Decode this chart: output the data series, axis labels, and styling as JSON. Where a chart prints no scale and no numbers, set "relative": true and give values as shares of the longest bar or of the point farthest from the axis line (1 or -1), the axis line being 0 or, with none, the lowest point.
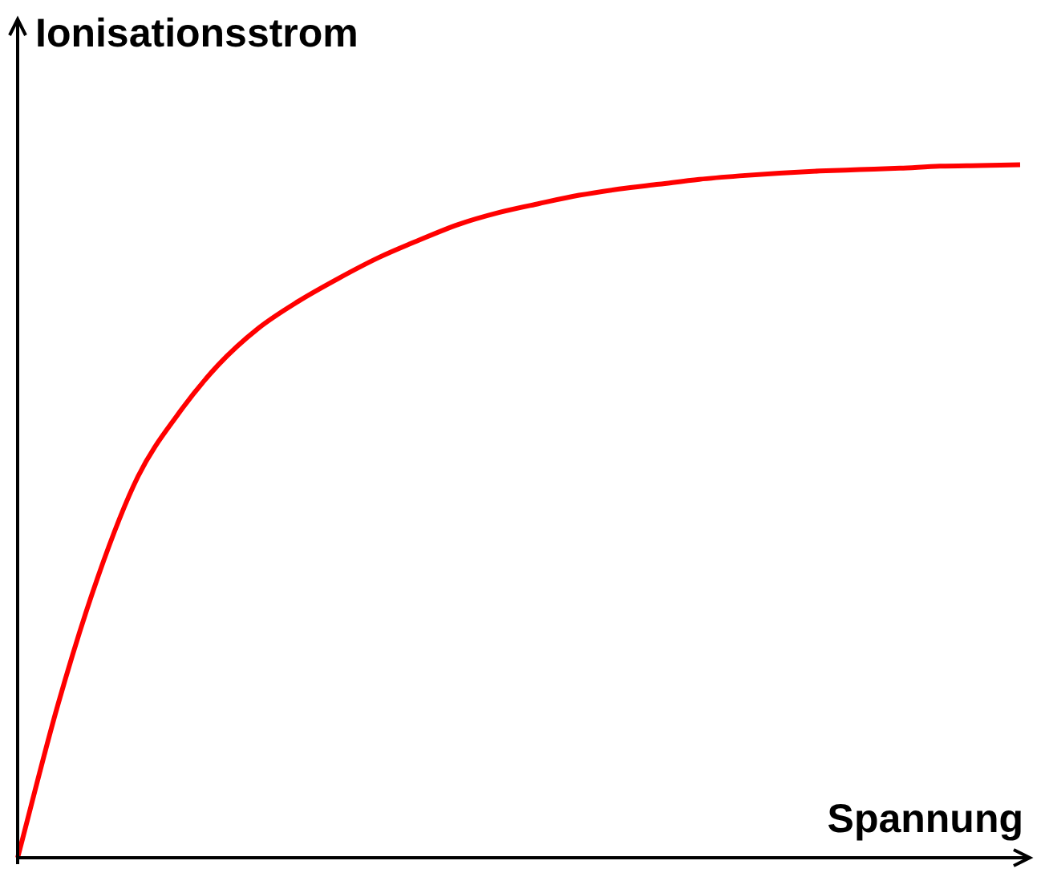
{
  "chart_data": {
    "type": "line",
    "relative": true,
    "xlabel": "Spannung",
    "ylabel": "Ionisationsstrom",
    "categories": [
      null,
      null,
      null,
      null,
      null,
      null,
      null,
      null,
      null,
      null,
      null,
      null,
      null,
      null,
      null,
      null,
      null,
      null,
      null,
      null,
      null,
      null,
      null,
      null,
      null,
      null
    ],
    "series": [
      {
        "color": "#ff0000",
        "values": [
          0,
          0.22,
          0.405,
          0.55,
          0.64,
          0.711,
          0.764,
          0.803,
          0.836,
          0.866,
          0.891,
          0.914,
          0.931,
          0.944,
          0.956,
          0.965,
          0.972,
          0.979,
          0.984,
          0.988,
          0.991,
          0.993,
          0.995,
          0.998,
          0.999,
          1
        ]
      }
    ],
    "legend": false
  }
}
